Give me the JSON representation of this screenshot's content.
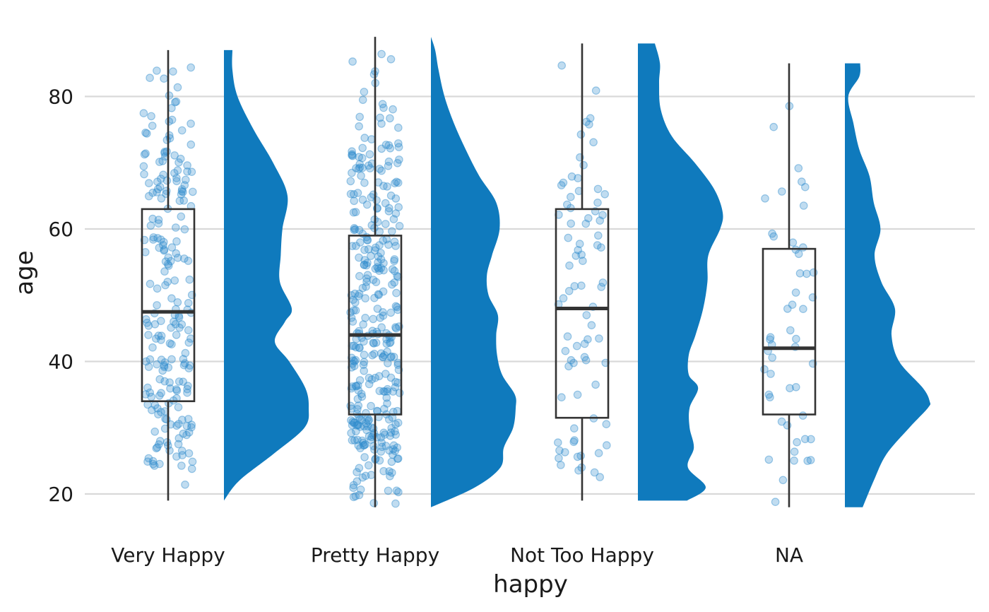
{
  "chart_data": {
    "type": "raincloud",
    "xlabel": "happy",
    "ylabel": "age",
    "categories": [
      "Very Happy",
      "Pretty Happy",
      "Not Too Happy",
      "NA"
    ],
    "ylim": [
      15,
      90
    ],
    "yticks": [
      20,
      40,
      60,
      80
    ],
    "grid": "horizontal",
    "colors": {
      "fill": "#0f7abd",
      "points": "#2f8ccc",
      "box": "#333333",
      "grid": "#d9d9d9"
    },
    "boxes": [
      {
        "category": "Very Happy",
        "min": 19,
        "q1": 34,
        "median": 47.5,
        "q3": 63,
        "max": 87,
        "n_points": 220
      },
      {
        "category": "Pretty Happy",
        "min": 18,
        "q1": 32,
        "median": 44,
        "q3": 59,
        "max": 89,
        "n_points": 360
      },
      {
        "category": "Not Too Happy",
        "min": 19,
        "q1": 31.5,
        "median": 48,
        "q3": 63,
        "max": 88,
        "n_points": 80
      },
      {
        "category": "NA",
        "min": 18,
        "q1": 32,
        "median": 42,
        "q3": 57,
        "max": 85,
        "n_points": 50
      }
    ],
    "densities": [
      {
        "category": "Very Happy",
        "age": [
          19,
          22,
          26,
          30,
          33,
          36,
          40,
          43,
          46,
          48,
          52,
          56,
          60,
          65,
          70,
          75,
          80,
          84,
          87
        ],
        "density": [
          0.0,
          0.18,
          0.58,
          0.95,
          1.0,
          0.96,
          0.77,
          0.6,
          0.72,
          0.8,
          0.66,
          0.67,
          0.69,
          0.75,
          0.58,
          0.35,
          0.16,
          0.1,
          0.1
        ]
      },
      {
        "category": "Pretty Happy",
        "age": [
          18,
          21,
          24,
          27,
          30,
          33,
          35,
          38,
          41,
          44,
          47,
          50,
          53,
          56,
          60,
          64,
          68,
          72,
          76,
          80,
          84,
          87,
          89
        ],
        "density": [
          0.0,
          0.52,
          0.82,
          0.86,
          0.97,
          1.0,
          0.99,
          0.84,
          0.78,
          0.77,
          0.79,
          0.68,
          0.66,
          0.72,
          0.81,
          0.77,
          0.57,
          0.41,
          0.27,
          0.16,
          0.09,
          0.05,
          0.0
        ]
      },
      {
        "category": "Not Too Happy",
        "age": [
          19,
          21,
          24,
          27,
          30,
          33,
          36,
          38,
          41,
          44,
          48,
          52,
          56,
          60,
          62.5,
          66,
          70,
          74,
          78,
          82,
          85,
          88
        ],
        "density": [
          0.58,
          0.8,
          0.59,
          0.66,
          0.61,
          0.61,
          0.71,
          0.6,
          0.6,
          0.68,
          0.77,
          0.82,
          0.83,
          0.97,
          1.0,
          0.9,
          0.67,
          0.4,
          0.27,
          0.25,
          0.26,
          0.2
        ]
      },
      {
        "category": "NA",
        "age": [
          18,
          22,
          26,
          30,
          33,
          34,
          36,
          40,
          44,
          48,
          52,
          56,
          60,
          64,
          68,
          72,
          76,
          80,
          83,
          85
        ],
        "density": [
          0.21,
          0.34,
          0.49,
          0.76,
          0.98,
          1.0,
          0.92,
          0.64,
          0.55,
          0.59,
          0.43,
          0.35,
          0.42,
          0.34,
          0.29,
          0.17,
          0.1,
          0.04,
          0.17,
          0.18
        ]
      }
    ]
  }
}
